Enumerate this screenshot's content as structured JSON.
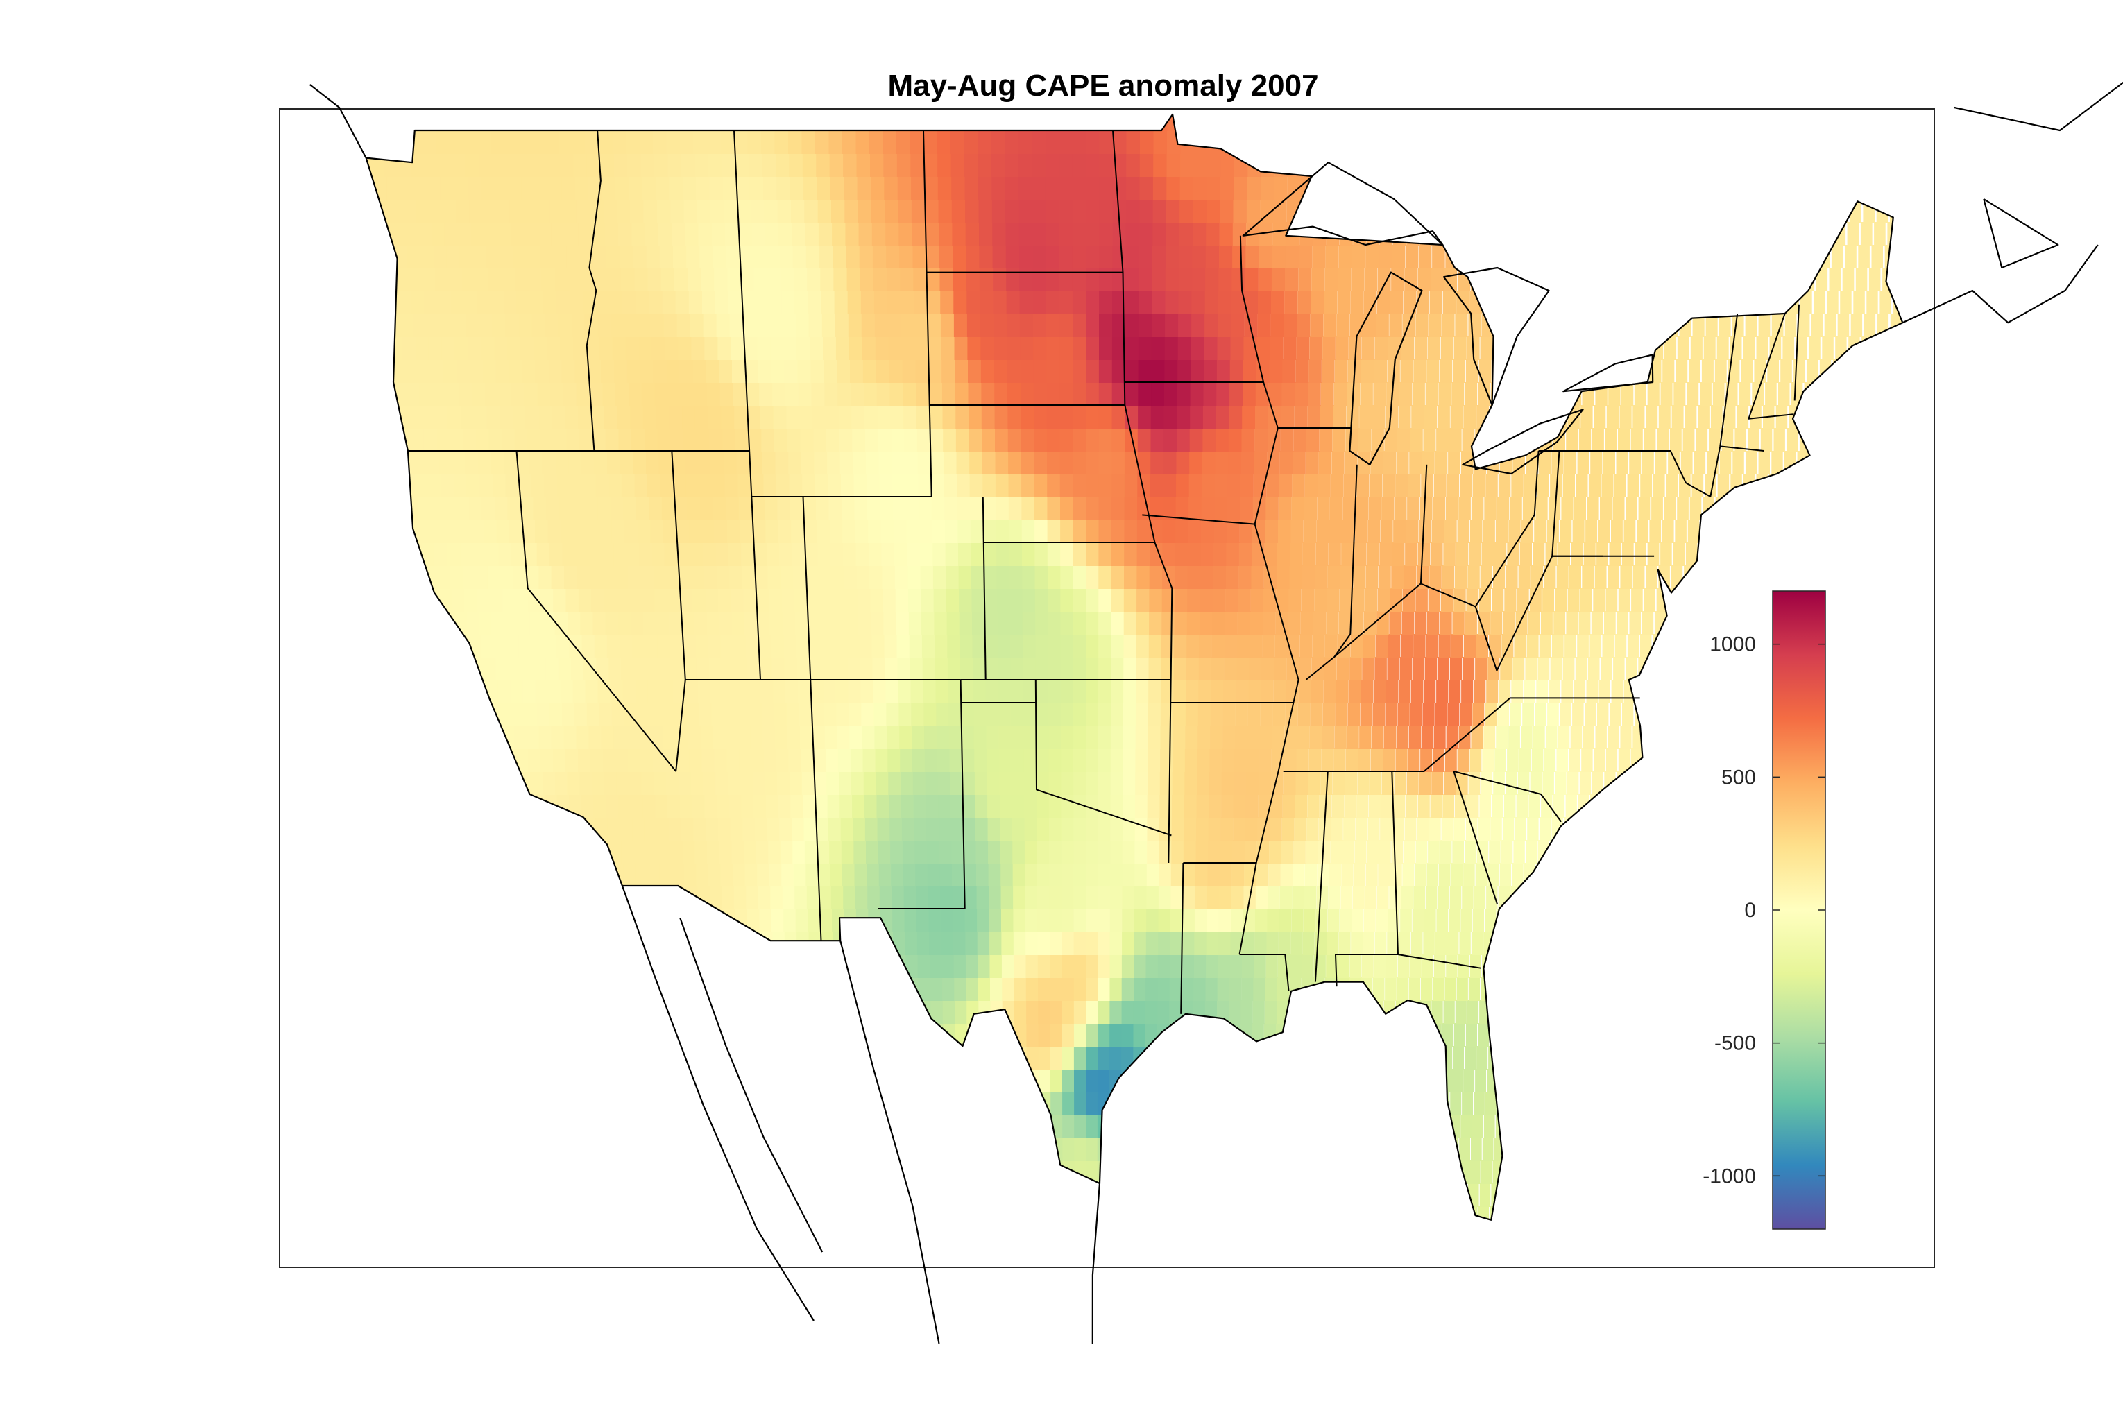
{
  "figure": {
    "title": "May-Aug CAPE anomaly 2007"
  },
  "colorbar": {
    "min": -1200,
    "max": 1200,
    "ticks": [
      {
        "value": 1000,
        "label": "1000"
      },
      {
        "value": 500,
        "label": "500"
      },
      {
        "value": 0,
        "label": "0"
      },
      {
        "value": -500,
        "label": "-500"
      },
      {
        "value": -1000,
        "label": "-1000"
      }
    ],
    "colormap": [
      "#5e4fa2",
      "#3288bd",
      "#66c2a5",
      "#abdda4",
      "#e6f598",
      "#ffffbf",
      "#fee08b",
      "#fdae61",
      "#f46d43",
      "#d53e4f",
      "#9e0142"
    ]
  },
  "chart_data": {
    "type": "heatmap",
    "title": "May-Aug CAPE anomaly 2007",
    "value_range": [
      -1200,
      1200
    ],
    "cells_lon_lat_value": [
      [
        -96.5,
        44.5,
        1100
      ],
      [
        -95.5,
        43.5,
        1200
      ],
      [
        -94.5,
        43.5,
        1150
      ],
      [
        -93.5,
        43.5,
        1000
      ],
      [
        -100,
        46,
        950
      ],
      [
        -98,
        47,
        900
      ],
      [
        -96,
        46.5,
        950
      ],
      [
        -94.5,
        46,
        850
      ],
      [
        -92.5,
        45,
        800
      ],
      [
        -91,
        44,
        700
      ],
      [
        -102,
        45,
        800
      ],
      [
        -99,
        44,
        750
      ],
      [
        -97,
        42,
        600
      ],
      [
        -93,
        41.5,
        650
      ],
      [
        -90.5,
        42.5,
        600
      ],
      [
        -89,
        40.5,
        450
      ],
      [
        -104,
        44.5,
        300
      ],
      [
        -94,
        48.3,
        650
      ],
      [
        -91,
        47,
        500
      ],
      [
        -88,
        45.5,
        450
      ],
      [
        -85.5,
        37.5,
        650
      ],
      [
        -83.5,
        36.5,
        700
      ],
      [
        -87,
        38.5,
        400
      ],
      [
        -82,
        39.5,
        300
      ],
      [
        -79,
        40.5,
        250
      ],
      [
        -75,
        42.5,
        200
      ],
      [
        -73,
        44,
        180
      ],
      [
        -70,
        45.5,
        150
      ],
      [
        -84.5,
        43,
        300
      ],
      [
        -87,
        43,
        350
      ],
      [
        -101,
        38.5,
        -350
      ],
      [
        -99.5,
        37.5,
        -300
      ],
      [
        -103,
        33.5,
        -500
      ],
      [
        -103.5,
        32,
        -600
      ],
      [
        -101.5,
        34.5,
        -250
      ],
      [
        -99,
        32,
        -150
      ],
      [
        -97.5,
        28,
        -1000
      ],
      [
        -96.5,
        28.5,
        -900
      ],
      [
        -95,
        29.5,
        -600
      ],
      [
        -93.5,
        29.8,
        -550
      ],
      [
        -91.5,
        30.2,
        -450
      ],
      [
        -89.5,
        30.5,
        -300
      ],
      [
        -82.5,
        28.5,
        -350
      ],
      [
        -81.5,
        26.5,
        -300
      ],
      [
        -81,
        25.5,
        -250
      ],
      [
        -98,
        26.5,
        -250
      ],
      [
        -99.5,
        29.5,
        350
      ],
      [
        -98.5,
        30.5,
        300
      ],
      [
        -92.5,
        33,
        300
      ],
      [
        -91.5,
        34.5,
        350
      ],
      [
        -113,
        42.5,
        250
      ],
      [
        -117.5,
        40,
        150
      ],
      [
        -112,
        36,
        100
      ],
      [
        -120,
        38,
        30
      ],
      [
        -105,
        41.5,
        0
      ],
      [
        -110,
        45,
        30
      ],
      [
        -108,
        38,
        80
      ],
      [
        -116,
        33.5,
        150
      ],
      [
        -86,
        33,
        50
      ],
      [
        -83.5,
        32,
        -150
      ],
      [
        -80.5,
        35.5,
        -100
      ],
      [
        -77.5,
        36.5,
        100
      ],
      [
        -114.5,
        35.5,
        120
      ]
    ]
  }
}
